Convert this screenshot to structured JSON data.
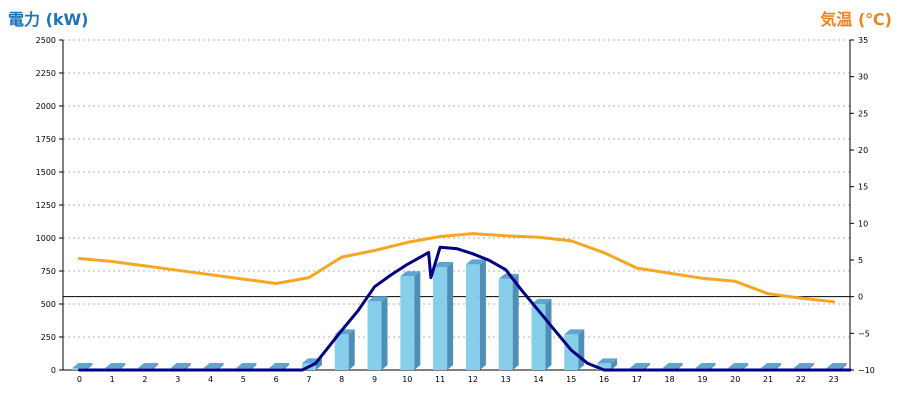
{
  "chart_data": {
    "type": "bar",
    "categories": [
      "0",
      "1",
      "2",
      "3",
      "4",
      "5",
      "6",
      "7",
      "8",
      "9",
      "10",
      "11",
      "12",
      "13",
      "14",
      "15",
      "16",
      "17",
      "18",
      "19",
      "20",
      "21",
      "22",
      "23"
    ],
    "ylabel_left": "電力 (kW)",
    "ylabel_right": "気温 (℃)",
    "ylim_left": [
      0,
      2500
    ],
    "ylim_right": [
      -10,
      35
    ],
    "yticks_left": [
      "0",
      "250",
      "500",
      "750",
      "1000",
      "1250",
      "1500",
      "1750",
      "2000",
      "2250",
      "2500"
    ],
    "yticks_right": [
      "−10",
      "−5",
      "0",
      "5",
      "10",
      "15",
      "20",
      "25",
      "30",
      "35"
    ],
    "grid": true,
    "series": [
      {
        "type": "bar",
        "axis": "left",
        "color": "#87ceeb",
        "values": [
          10,
          10,
          10,
          10,
          10,
          10,
          10,
          50,
          270,
          520,
          710,
          780,
          800,
          690,
          500,
          270,
          50,
          10,
          10,
          10,
          10,
          10,
          10,
          10
        ]
      },
      {
        "type": "line",
        "axis": "left",
        "color": "#000080",
        "points": [
          [
            0,
            0
          ],
          [
            6.8,
            0
          ],
          [
            7.2,
            50
          ],
          [
            8,
            300
          ],
          [
            8.5,
            450
          ],
          [
            9,
            630
          ],
          [
            9.5,
            720
          ],
          [
            10,
            800
          ],
          [
            10.65,
            890
          ],
          [
            10.72,
            700
          ],
          [
            11,
            930
          ],
          [
            11.5,
            920
          ],
          [
            12,
            880
          ],
          [
            12.5,
            830
          ],
          [
            13,
            760
          ],
          [
            13.5,
            600
          ],
          [
            14,
            450
          ],
          [
            14.5,
            300
          ],
          [
            15,
            150
          ],
          [
            15.5,
            50
          ],
          [
            16,
            0
          ],
          [
            23.5,
            0
          ]
        ]
      },
      {
        "type": "line",
        "axis": "right",
        "color": "#f5a623",
        "points": [
          [
            0,
            5.2
          ],
          [
            1,
            4.8
          ],
          [
            2,
            4.2
          ],
          [
            3,
            3.6
          ],
          [
            4,
            3.0
          ],
          [
            5,
            2.4
          ],
          [
            6,
            1.8
          ],
          [
            7,
            2.6
          ],
          [
            8,
            5.4
          ],
          [
            9,
            6.3
          ],
          [
            10,
            7.4
          ],
          [
            11,
            8.2
          ],
          [
            12,
            8.6
          ],
          [
            13,
            8.3
          ],
          [
            14,
            8.1
          ],
          [
            15,
            7.6
          ],
          [
            16,
            6.0
          ],
          [
            17,
            3.9
          ],
          [
            18,
            3.2
          ],
          [
            19,
            2.5
          ],
          [
            20,
            2.1
          ],
          [
            21,
            0.4
          ],
          [
            22,
            -0.2
          ],
          [
            23,
            -0.7
          ]
        ]
      }
    ]
  }
}
